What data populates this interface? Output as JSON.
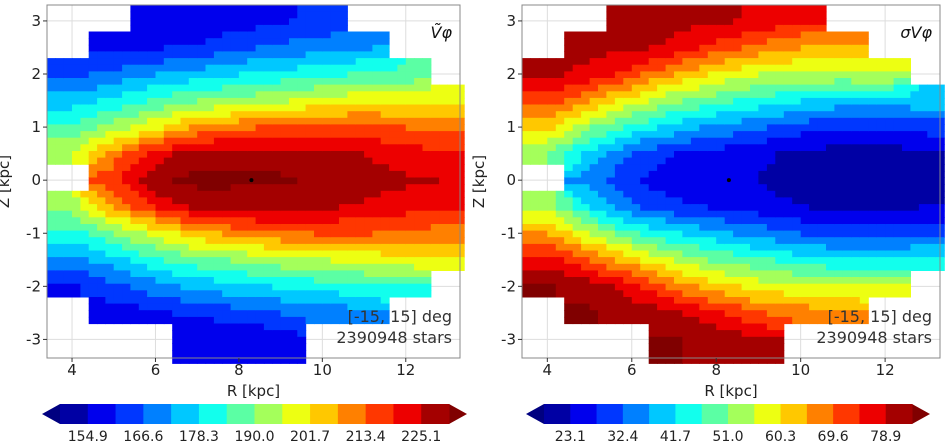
{
  "chart_data": [
    {
      "type": "heatmap",
      "title": "Ṽφ",
      "xlabel": "R [kpc]",
      "ylabel": "Z [kpc]",
      "xlim": [
        3.4,
        13.3
      ],
      "ylim": [
        -3.35,
        3.3
      ],
      "xticks": [
        4,
        6,
        8,
        10,
        12
      ],
      "yticks": [
        -3,
        -2,
        -1,
        0,
        1,
        2,
        3
      ],
      "annotation": [
        "[-15, 15] deg",
        "2390948 stars"
      ],
      "colorbar": {
        "vmin": 149.05,
        "vmax": 230.95,
        "bins": 14,
        "ticks": [
          "154.9",
          "166.6",
          "178.3",
          "190.0",
          "201.7",
          "213.4",
          "225.1"
        ]
      },
      "r_grid": [
        4,
        5,
        6,
        7,
        8,
        9,
        10,
        11,
        12,
        13
      ],
      "z_grid": [
        3,
        2.5,
        2,
        1.5,
        1,
        0.5,
        0,
        -0.5,
        -1,
        -1.5,
        -2,
        -2.5,
        -3
      ],
      "values": [
        [
          null,
          null,
          156,
          155,
          158,
          160,
          162,
          null,
          null,
          null
        ],
        [
          null,
          158,
          160,
          162,
          165,
          168,
          170,
          172,
          null,
          null
        ],
        [
          165,
          168,
          172,
          175,
          178,
          180,
          182,
          185,
          185,
          null
        ],
        [
          175,
          180,
          185,
          190,
          192,
          195,
          198,
          200,
          200,
          200
        ],
        [
          185,
          192,
          200,
          208,
          212,
          215,
          215,
          215,
          213,
          212
        ],
        [
          195,
          210,
          222,
          228,
          228,
          228,
          226,
          225,
          222,
          220
        ],
        [
          null,
          218,
          230,
          233,
          232,
          232,
          230,
          228,
          226,
          225
        ],
        [
          193,
          208,
          220,
          227,
          228,
          228,
          226,
          224,
          222,
          220
        ],
        [
          182,
          190,
          198,
          206,
          210,
          213,
          214,
          214,
          212,
          211
        ],
        [
          170,
          176,
          183,
          188,
          191,
          194,
          196,
          198,
          199,
          199
        ],
        [
          160,
          165,
          170,
          174,
          177,
          179,
          181,
          183,
          184,
          null
        ],
        [
          null,
          157,
          160,
          162,
          164,
          167,
          169,
          170,
          null,
          null
        ],
        [
          null,
          null,
          null,
          156,
          155,
          157,
          null,
          null,
          null,
          null
        ]
      ],
      "marker": [
        8.3,
        0
      ]
    },
    {
      "type": "heatmap",
      "title": "σVφ",
      "xlabel": "R [kpc]",
      "ylabel": "Z [kpc]",
      "xlim": [
        3.4,
        13.3
      ],
      "ylim": [
        -3.35,
        3.3
      ],
      "xticks": [
        4,
        6,
        8,
        10,
        12
      ],
      "yticks": [
        -3,
        -2,
        -1,
        0,
        1,
        2,
        3
      ],
      "annotation": [
        "[-15, 15] deg",
        "2390948 stars"
      ],
      "colorbar": {
        "vmin": 18.45,
        "vmax": 83.55,
        "bins": 14,
        "ticks": [
          "23.1",
          "32.4",
          "41.7",
          "51.0",
          "60.3",
          "69.6",
          "78.9"
        ]
      },
      "r_grid": [
        4,
        5,
        6,
        7,
        8,
        9,
        10,
        11,
        12,
        13
      ],
      "z_grid": [
        3,
        2.5,
        2,
        1.5,
        1,
        0.5,
        0,
        -0.5,
        -1,
        -1.5,
        -2,
        -2.5,
        -3
      ],
      "values": [
        [
          null,
          null,
          80,
          80,
          80,
          78,
          75,
          null,
          null,
          null
        ],
        [
          null,
          80,
          80,
          78,
          72,
          68,
          65,
          65,
          null,
          null
        ],
        [
          80,
          78,
          72,
          65,
          60,
          56,
          55,
          55,
          56,
          null
        ],
        [
          72,
          65,
          58,
          52,
          48,
          45,
          42,
          40,
          40,
          40
        ],
        [
          62,
          52,
          45,
          40,
          36,
          33,
          30,
          28,
          28,
          30
        ],
        [
          52,
          40,
          32,
          28,
          26,
          24,
          22,
          21,
          21,
          22
        ],
        [
          null,
          35,
          28,
          25,
          24,
          23,
          21,
          20,
          20,
          21
        ],
        [
          54,
          42,
          33,
          29,
          27,
          25,
          23,
          22,
          22,
          23
        ],
        [
          65,
          55,
          47,
          42,
          38,
          35,
          32,
          30,
          30,
          32
        ],
        [
          76,
          70,
          62,
          55,
          50,
          47,
          44,
          42,
          42,
          43
        ],
        [
          84,
          82,
          76,
          68,
          62,
          58,
          56,
          56,
          58,
          null
        ],
        [
          null,
          84,
          82,
          80,
          75,
          70,
          68,
          66,
          null,
          null
        ],
        [
          null,
          null,
          null,
          84,
          82,
          80,
          null,
          null,
          null,
          null
        ]
      ],
      "marker": [
        8.3,
        0
      ]
    }
  ]
}
